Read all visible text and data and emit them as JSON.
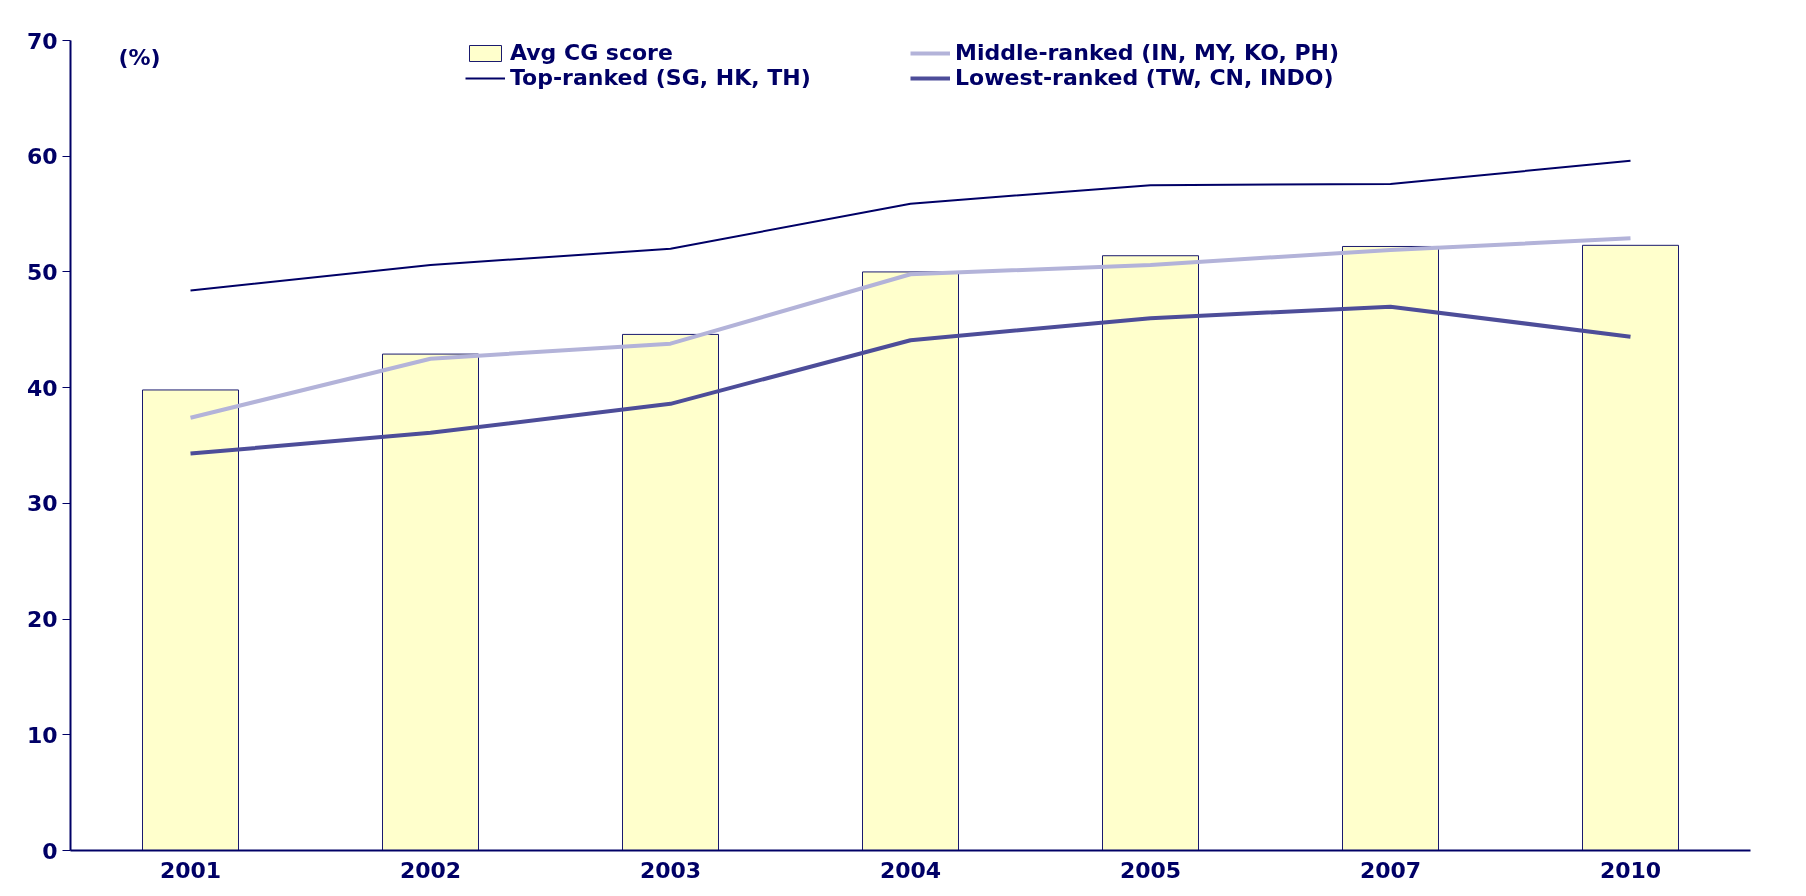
{
  "chart_data": {
    "type": "bar",
    "ylabel": "(%)",
    "categories": [
      "2001",
      "2002",
      "2003",
      "2004",
      "2005",
      "2007",
      "2010"
    ],
    "ylim": [
      0,
      70
    ],
    "yticks": [
      0,
      10,
      20,
      30,
      40,
      50,
      60,
      70
    ],
    "grid": false,
    "legend": "top",
    "series": [
      {
        "name": "Avg CG score",
        "color": "#ffffcc",
        "values": [
          39.8,
          42.9,
          44.6,
          50.0,
          51.4,
          52.2,
          52.3
        ]
      },
      {
        "name": "Top-ranked (SG, HK, TH)",
        "type": "line",
        "color": "#000066",
        "values": [
          48.4,
          50.6,
          52.0,
          55.9,
          57.5,
          57.6,
          59.6
        ]
      },
      {
        "name": "Middle-ranked (IN, MY, KO, PH)",
        "type": "line",
        "color": "#b3b3d9",
        "values": [
          37.4,
          42.5,
          43.8,
          49.8,
          50.6,
          51.9,
          52.9
        ]
      },
      {
        "name": "Lowest-ranked (TW, CN, INDO)",
        "type": "line",
        "color": "#4d4d99",
        "values": [
          34.3,
          36.1,
          38.6,
          44.1,
          46.0,
          47.0,
          44.4
        ]
      }
    ]
  }
}
